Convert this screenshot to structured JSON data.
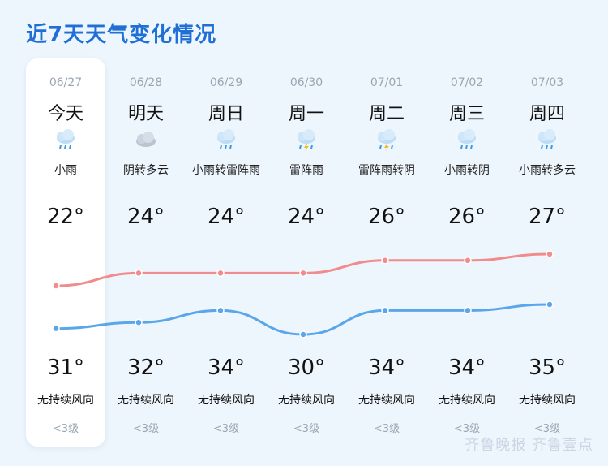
{
  "title": "近7天天气变化情况",
  "days": [
    {
      "date": "06/27",
      "name": "今天",
      "icon": "rain-icon",
      "desc": "小雨",
      "hi": "22°",
      "lo": "31°",
      "wind": "无持续风向",
      "level": "<3级"
    },
    {
      "date": "06/28",
      "name": "明天",
      "icon": "cloudy-icon",
      "desc": "阴转多云",
      "hi": "24°",
      "lo": "32°",
      "wind": "无持续风向",
      "level": "<3级"
    },
    {
      "date": "06/29",
      "name": "周日",
      "icon": "rain-icon",
      "desc": "小雨转雷阵雨",
      "hi": "24°",
      "lo": "34°",
      "wind": "无持续风向",
      "level": "<3级"
    },
    {
      "date": "06/30",
      "name": "周一",
      "icon": "thunder-rain-icon",
      "desc": "雷阵雨",
      "hi": "24°",
      "lo": "30°",
      "wind": "无持续风向",
      "level": "<3级"
    },
    {
      "date": "07/01",
      "name": "周二",
      "icon": "thunder-rain-icon",
      "desc": "雷阵雨转阴",
      "hi": "26°",
      "lo": "34°",
      "wind": "无持续风向",
      "level": "<3级"
    },
    {
      "date": "07/02",
      "name": "周三",
      "icon": "rain-icon",
      "desc": "小雨转阴",
      "hi": "26°",
      "lo": "34°",
      "wind": "无持续风向",
      "level": "<3级"
    },
    {
      "date": "07/03",
      "name": "周四",
      "icon": "rain-icon",
      "desc": "小雨转多云",
      "hi": "27°",
      "lo": "35°",
      "wind": "无持续风向",
      "level": "<3级"
    }
  ],
  "chart_data": {
    "type": "line",
    "series": [
      {
        "values": [
          22,
          24,
          24,
          24,
          26,
          26,
          27
        ],
        "color": "#f28b8b"
      },
      {
        "values": [
          31,
          32,
          34,
          30,
          34,
          34,
          35
        ],
        "color": "#5aa6ea"
      }
    ]
  },
  "watermark": "齐鲁晚报 齐鲁壹点",
  "colors": {
    "accent": "#1f6fd6",
    "background": "#eef6fd"
  }
}
